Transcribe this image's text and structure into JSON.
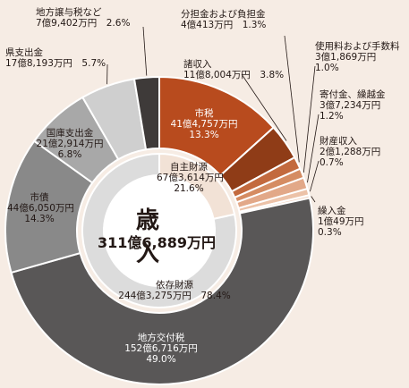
{
  "chart_data": {
    "type": "pie",
    "title": "",
    "center": {
      "label": "歳　入",
      "amount": "311億6,889万円"
    },
    "unit": "%",
    "slices": [
      {
        "name": "市税",
        "amount": "41億4,757万円",
        "pct_label": "13.3%",
        "value": 13.3,
        "color": "#b84b1e",
        "group": "own"
      },
      {
        "name": "諸収入",
        "amount": "11億8,004万円",
        "pct_label": "3.8%",
        "value": 3.8,
        "color": "#8f3c17",
        "group": "own"
      },
      {
        "name": "分担金および負担金",
        "amount": "4億413万円",
        "pct_label": "1.3%",
        "value": 1.3,
        "color": "#c36a3e",
        "group": "own"
      },
      {
        "name": "使用料および手数料",
        "amount": "3億1,869万円",
        "pct_label": "1.0%",
        "value": 1.0,
        "color": "#d58c62",
        "group": "own"
      },
      {
        "name": "寄付金、繰越金",
        "amount": "3億7,234万円",
        "pct_label": "1.2%",
        "value": 1.2,
        "color": "#e2a888",
        "group": "own"
      },
      {
        "name": "財産収入",
        "amount": "2億1,288万円",
        "pct_label": "0.7%",
        "value": 0.7,
        "color": "#ecc2a8",
        "group": "own"
      },
      {
        "name": "繰入金",
        "amount": "1億49万円",
        "pct_label": "0.3%",
        "value": 0.3,
        "color": "#f2d6c4",
        "group": "own"
      },
      {
        "name": "地方交付税",
        "amount": "152億6,716万円",
        "pct_label": "49.0%",
        "value": 49.0,
        "color": "#595757",
        "group": "dependent"
      },
      {
        "name": "市債",
        "amount": "44億6,050万円",
        "pct_label": "14.3%",
        "value": 14.3,
        "color": "#898989",
        "group": "dependent"
      },
      {
        "name": "国庫支出金",
        "amount": "21億2,914万円",
        "pct_label": "6.8%",
        "value": 6.8,
        "color": "#a8a8a8",
        "group": "dependent"
      },
      {
        "name": "県支出金",
        "amount": "17億8,193万円",
        "pct_label": "5.7%",
        "value": 5.7,
        "color": "#cfcfcf",
        "group": "dependent"
      },
      {
        "name": "地方譲与税など",
        "amount": "7億9,402万円",
        "pct_label": "2.6%",
        "value": 2.6,
        "color": "#3e3a39",
        "group": "dependent"
      }
    ],
    "inner_ring": [
      {
        "name": "自主財源",
        "amount": "67億3,614万円",
        "pct_label": "21.6%",
        "value": 21.6,
        "color": "#f2e2d6"
      },
      {
        "name": "依存財源",
        "amount": "244億3,275万円",
        "pct_label": "78.4%",
        "value": 78.4,
        "color": "#dcdcdc"
      }
    ]
  }
}
